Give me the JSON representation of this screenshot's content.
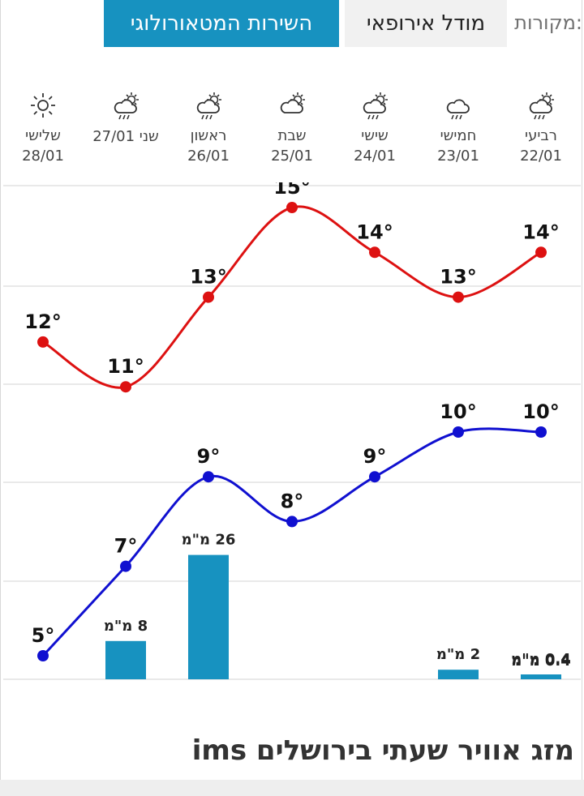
{
  "sources": {
    "label": "מקורות:",
    "tabs": [
      {
        "label": "מודל אירופאי",
        "active": false
      },
      {
        "label": "השירות המטאורולוגי",
        "active": true
      }
    ]
  },
  "accent_color": "#1792c0",
  "days": [
    {
      "name": "רביעי",
      "date": "22/01",
      "icon": "rain-sun-icon"
    },
    {
      "name": "חמישי",
      "date": "23/01",
      "icon": "rain-icon"
    },
    {
      "name": "שישי",
      "date": "24/01",
      "icon": "rain-sun-icon"
    },
    {
      "name": "שבת",
      "date": "25/01",
      "icon": "cloud-sun-icon"
    },
    {
      "name": "ראשון",
      "date": "26/01",
      "icon": "rain-sun-icon"
    },
    {
      "name": "שני",
      "date": "שני 27/01",
      "icon": "rain-sun-icon"
    },
    {
      "name": "שלישי",
      "date": "28/01",
      "icon": "sun-icon"
    }
  ],
  "chart_data": {
    "type": "line",
    "x": [
      "22/01",
      "23/01",
      "24/01",
      "25/01",
      "26/01",
      "27/01",
      "28/01"
    ],
    "series": [
      {
        "values": [
          14,
          13,
          14,
          15,
          13,
          11,
          12
        ],
        "labels": [
          "14°",
          "13°",
          "14°",
          "15°",
          "13°",
          "11°",
          "12°"
        ],
        "color": "#dd1111"
      },
      {
        "values": [
          10,
          10,
          9,
          8,
          9,
          7,
          5
        ],
        "labels": [
          "10°",
          "10°",
          "9°",
          "8°",
          "9°",
          "7°",
          "5°"
        ],
        "color": "#1010d0"
      }
    ],
    "precipitation": {
      "values": [
        0.4,
        2,
        0,
        0,
        26,
        8,
        0
      ],
      "labels": [
        "0.4 מ\"מ",
        "2 מ\"מ",
        "",
        "",
        "26 מ\"מ",
        "8 מ\"מ",
        ""
      ],
      "color": "#1792c0"
    },
    "grid": true
  },
  "section_title": "מזג אוויר שעתי בירושלים ims"
}
